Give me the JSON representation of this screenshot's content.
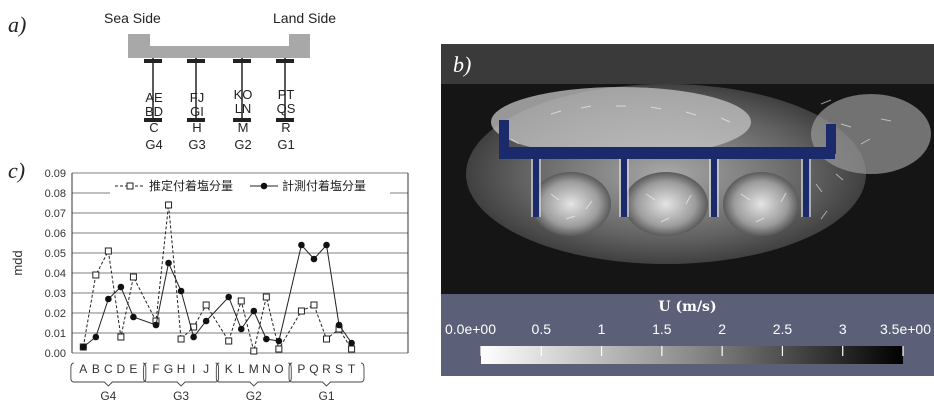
{
  "panel_a": {
    "letter": "a)",
    "sea_side": "Sea Side",
    "land_side": "Land Side",
    "piers": [
      {
        "top": "AE",
        "mid": "BD",
        "letter": "C",
        "name": "G4"
      },
      {
        "top": "FJ",
        "mid": "GI",
        "letter": "H",
        "name": "G3"
      },
      {
        "top": "KO",
        "mid": "LN",
        "letter": "M",
        "name": "G2"
      },
      {
        "top": "PT",
        "mid": "QS",
        "letter": "R",
        "name": "G1"
      }
    ]
  },
  "panel_b": {
    "letter": "b)",
    "colorbar_title": "U (m/s)",
    "colorbar_ticks": [
      "0.0e+00",
      "0.5",
      "1",
      "1.5",
      "2",
      "2.5",
      "3",
      "3.5e+00"
    ],
    "colors": {
      "background": "#5b6078",
      "field_dark": "#111111",
      "structure": "#1b2a6b"
    }
  },
  "chart_data": {
    "type": "line",
    "letter": "c)",
    "ylabel": "mdd",
    "ylim": [
      0,
      0.09
    ],
    "yticks": [
      "0.00",
      "0.01",
      "0.02",
      "0.03",
      "0.04",
      "0.05",
      "0.06",
      "0.07",
      "0.08",
      "0.09"
    ],
    "grid": true,
    "legend_position": "top-right",
    "groups": [
      {
        "name": "G4",
        "categories": [
          "A",
          "B",
          "C",
          "D",
          "E"
        ]
      },
      {
        "name": "G3",
        "categories": [
          "F",
          "G",
          "H",
          "I",
          "J"
        ]
      },
      {
        "name": "G2",
        "categories": [
          "K",
          "L",
          "M",
          "N",
          "O"
        ]
      },
      {
        "name": "G1",
        "categories": [
          "P",
          "Q",
          "R",
          "S",
          "T"
        ]
      }
    ],
    "series": [
      {
        "name": "推定付着塩分量",
        "style": "dashed-open-square",
        "values": [
          [
            0.003,
            0.039,
            0.051,
            0.008,
            0.038
          ],
          [
            0.016,
            0.074,
            0.007,
            0.013,
            0.024
          ],
          [
            0.006,
            0.026,
            0.001,
            0.028,
            0.002
          ],
          [
            0.021,
            0.024,
            0.007,
            0.012,
            0.002
          ]
        ]
      },
      {
        "name": "計測付着塩分量",
        "style": "solid-filled-circle",
        "values": [
          [
            0.003,
            0.008,
            0.027,
            0.033,
            0.018
          ],
          [
            0.014,
            0.045,
            0.031,
            0.008,
            0.016
          ],
          [
            0.028,
            0.012,
            0.021,
            0.007,
            0.006
          ],
          [
            0.054,
            0.047,
            0.054,
            0.014,
            0.005
          ]
        ]
      }
    ]
  }
}
